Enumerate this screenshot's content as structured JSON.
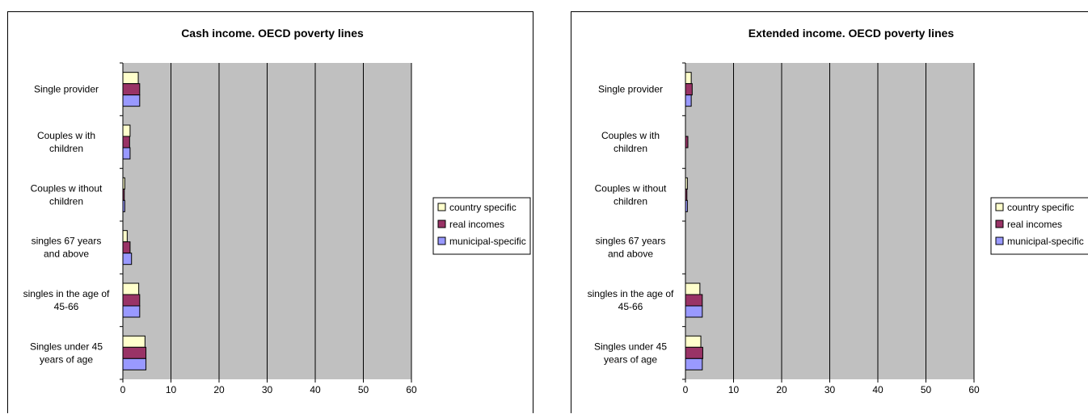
{
  "charts": {
    "left": {
      "chart_data": {
        "type": "bar",
        "orientation": "horizontal",
        "title": "Cash income. OECD poverty lines",
        "categories": [
          [
            "Single provider"
          ],
          [
            "Couples w ith",
            "children"
          ],
          [
            "Couples w ithout",
            "children"
          ],
          [
            "singles 67 years",
            "and above"
          ],
          [
            "singles in the age of",
            "45-66"
          ],
          [
            "Singles under 45",
            "years of age"
          ]
        ],
        "series": [
          {
            "name": "country specific",
            "color": "#FFFFCC",
            "values": [
              3.2,
              1.5,
              0.4,
              0.9,
              3.3,
              4.6
            ]
          },
          {
            "name": "real incomes",
            "color": "#993366",
            "values": [
              3.5,
              1.4,
              0.3,
              1.5,
              3.5,
              4.8
            ]
          },
          {
            "name": "municipal-specific",
            "color": "#9999FF",
            "values": [
              3.5,
              1.5,
              0.4,
              1.8,
              3.5,
              4.8
            ]
          }
        ],
        "xlim": [
          0,
          60
        ],
        "xticks": [
          "0",
          "10",
          "20",
          "30",
          "40",
          "50",
          "60"
        ],
        "grid": true,
        "plot_background": "#C0C0C0",
        "legend": "right"
      }
    },
    "right": {
      "chart_data": {
        "type": "bar",
        "orientation": "horizontal",
        "title": "Extended income. OECD poverty lines",
        "categories": [
          [
            "Single provider"
          ],
          [
            "Couples w ith",
            "children"
          ],
          [
            "Couples w ithout",
            "children"
          ],
          [
            "singles 67 years",
            "and above"
          ],
          [
            "singles in the age of",
            "45-66"
          ],
          [
            "Singles under 45",
            "years of age"
          ]
        ],
        "series": [
          {
            "name": "country specific",
            "color": "#FFFFCC",
            "values": [
              1.2,
              0.0,
              0.4,
              0.0,
              3.0,
              3.2
            ]
          },
          {
            "name": "real incomes",
            "color": "#993366",
            "values": [
              1.4,
              0.5,
              0.3,
              0.0,
              3.5,
              3.6
            ]
          },
          {
            "name": "municipal-specific",
            "color": "#9999FF",
            "values": [
              1.2,
              0.0,
              0.4,
              0.0,
              3.5,
              3.5
            ]
          }
        ],
        "xlim": [
          0,
          60
        ],
        "xticks": [
          "0",
          "10",
          "20",
          "30",
          "40",
          "50",
          "60"
        ],
        "grid": true,
        "plot_background": "#C0C0C0",
        "legend": "right"
      }
    }
  }
}
